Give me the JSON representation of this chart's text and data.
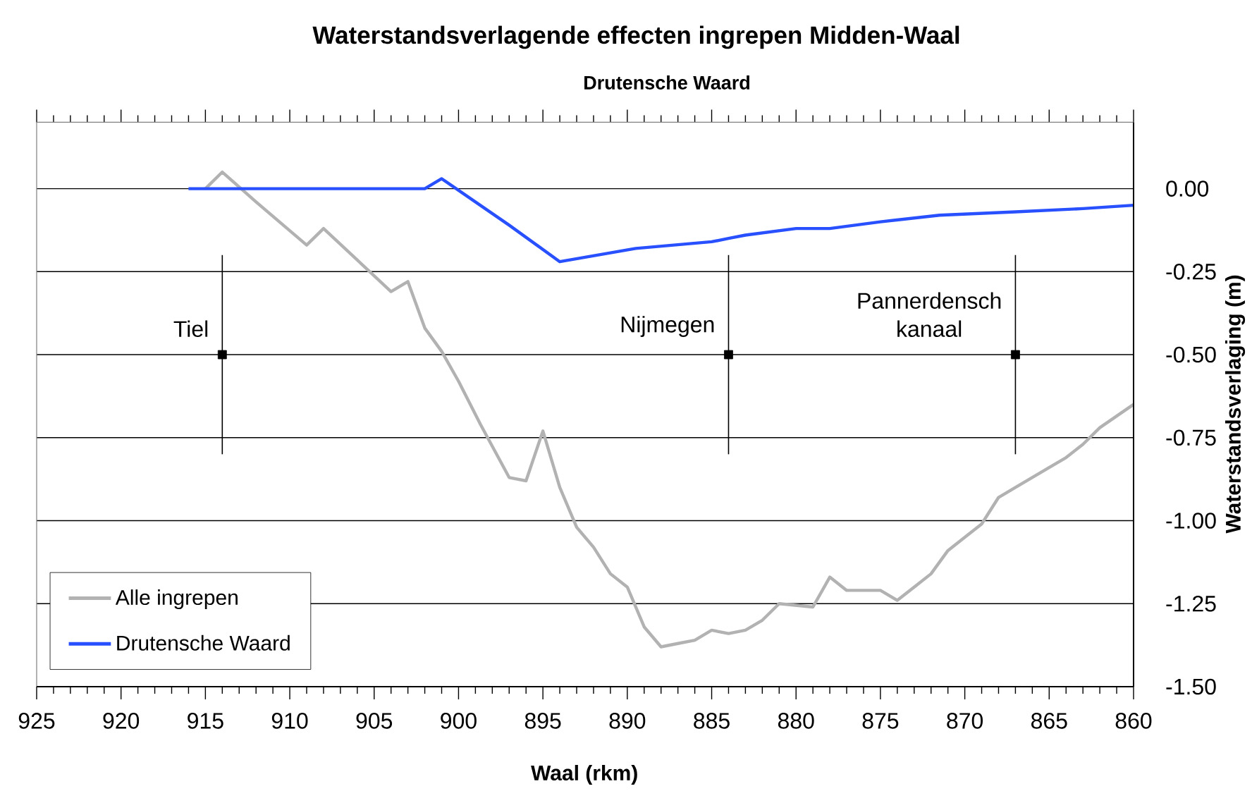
{
  "chart_data": {
    "type": "line",
    "title": "Waterstandsverlagende effecten ingrepen Midden-Waal",
    "subtitle": "Drutensche Waard",
    "xlabel": "Waal (rkm)",
    "ylabel": "Waterstandsverlaging (m)",
    "xlim": [
      925,
      860
    ],
    "xticks": [
      925,
      920,
      915,
      910,
      905,
      900,
      895,
      890,
      885,
      880,
      875,
      870,
      865,
      860
    ],
    "ylim": [
      -1.5,
      0.2
    ],
    "yticks": [
      {
        "value": 0,
        "label": "0.00"
      },
      {
        "value": -0.25,
        "label": "-0.25"
      },
      {
        "value": -0.5,
        "label": "-0.50"
      },
      {
        "value": -0.75,
        "label": "-0.75"
      },
      {
        "value": -1,
        "label": "-1.00"
      },
      {
        "value": -1.25,
        "label": "-1.25"
      },
      {
        "value": -1.5,
        "label": "-1.50"
      }
    ],
    "grid": "y",
    "legend": "bottom left",
    "series": [
      {
        "name": "Alle ingrepen",
        "color": "#b2b2b2",
        "x": [
          915,
          914,
          912,
          909,
          908,
          904,
          903,
          902,
          901,
          900,
          898.7,
          897,
          896,
          895,
          894,
          893,
          892,
          891,
          890,
          889,
          888,
          887,
          886,
          885,
          884,
          883,
          882,
          881,
          879,
          878,
          877,
          875,
          874,
          873,
          872,
          871,
          869,
          868,
          867,
          865,
          864,
          863,
          862,
          860
        ],
        "values": [
          0.0,
          0.05,
          -0.04,
          -0.17,
          -0.12,
          -0.31,
          -0.28,
          -0.42,
          -0.49,
          -0.58,
          -0.71,
          -0.87,
          -0.88,
          -0.73,
          -0.9,
          -1.02,
          -1.08,
          -1.16,
          -1.2,
          -1.32,
          -1.38,
          -1.37,
          -1.36,
          -1.33,
          -1.34,
          -1.33,
          -1.3,
          -1.25,
          -1.26,
          -1.17,
          -1.21,
          -1.21,
          -1.24,
          -1.2,
          -1.16,
          -1.09,
          -1.01,
          -0.93,
          -0.9,
          -0.84,
          -0.81,
          -0.77,
          -0.72,
          -0.65
        ]
      },
      {
        "name": "Drutensche Waard",
        "color": "#2850ff",
        "x": [
          916,
          902,
          901,
          897,
          894,
          889.5,
          885,
          884,
          883,
          880,
          878,
          875,
          871.5,
          867,
          863,
          860
        ],
        "values": [
          0.0,
          0.0,
          0.03,
          -0.11,
          -0.22,
          -0.18,
          -0.16,
          -0.15,
          -0.14,
          -0.12,
          -0.12,
          -0.1,
          -0.08,
          -0.07,
          -0.06,
          -0.05
        ]
      },
      {
        "type": "scatter",
        "marker": "square",
        "color": "#000000",
        "x": [
          914,
          884,
          867
        ],
        "values": [
          -0.5,
          -0.5,
          -0.5
        ],
        "errors": [
          0.3,
          0.3,
          0.3
        ]
      }
    ],
    "annotations": [
      {
        "text": "Tiel",
        "x": 914,
        "y": -0.5
      },
      {
        "text": "Nijmegen",
        "x": 884,
        "y": -0.5
      },
      {
        "text": "Pannerdensch kanaal",
        "x": 867,
        "y": -0.5
      }
    ]
  }
}
